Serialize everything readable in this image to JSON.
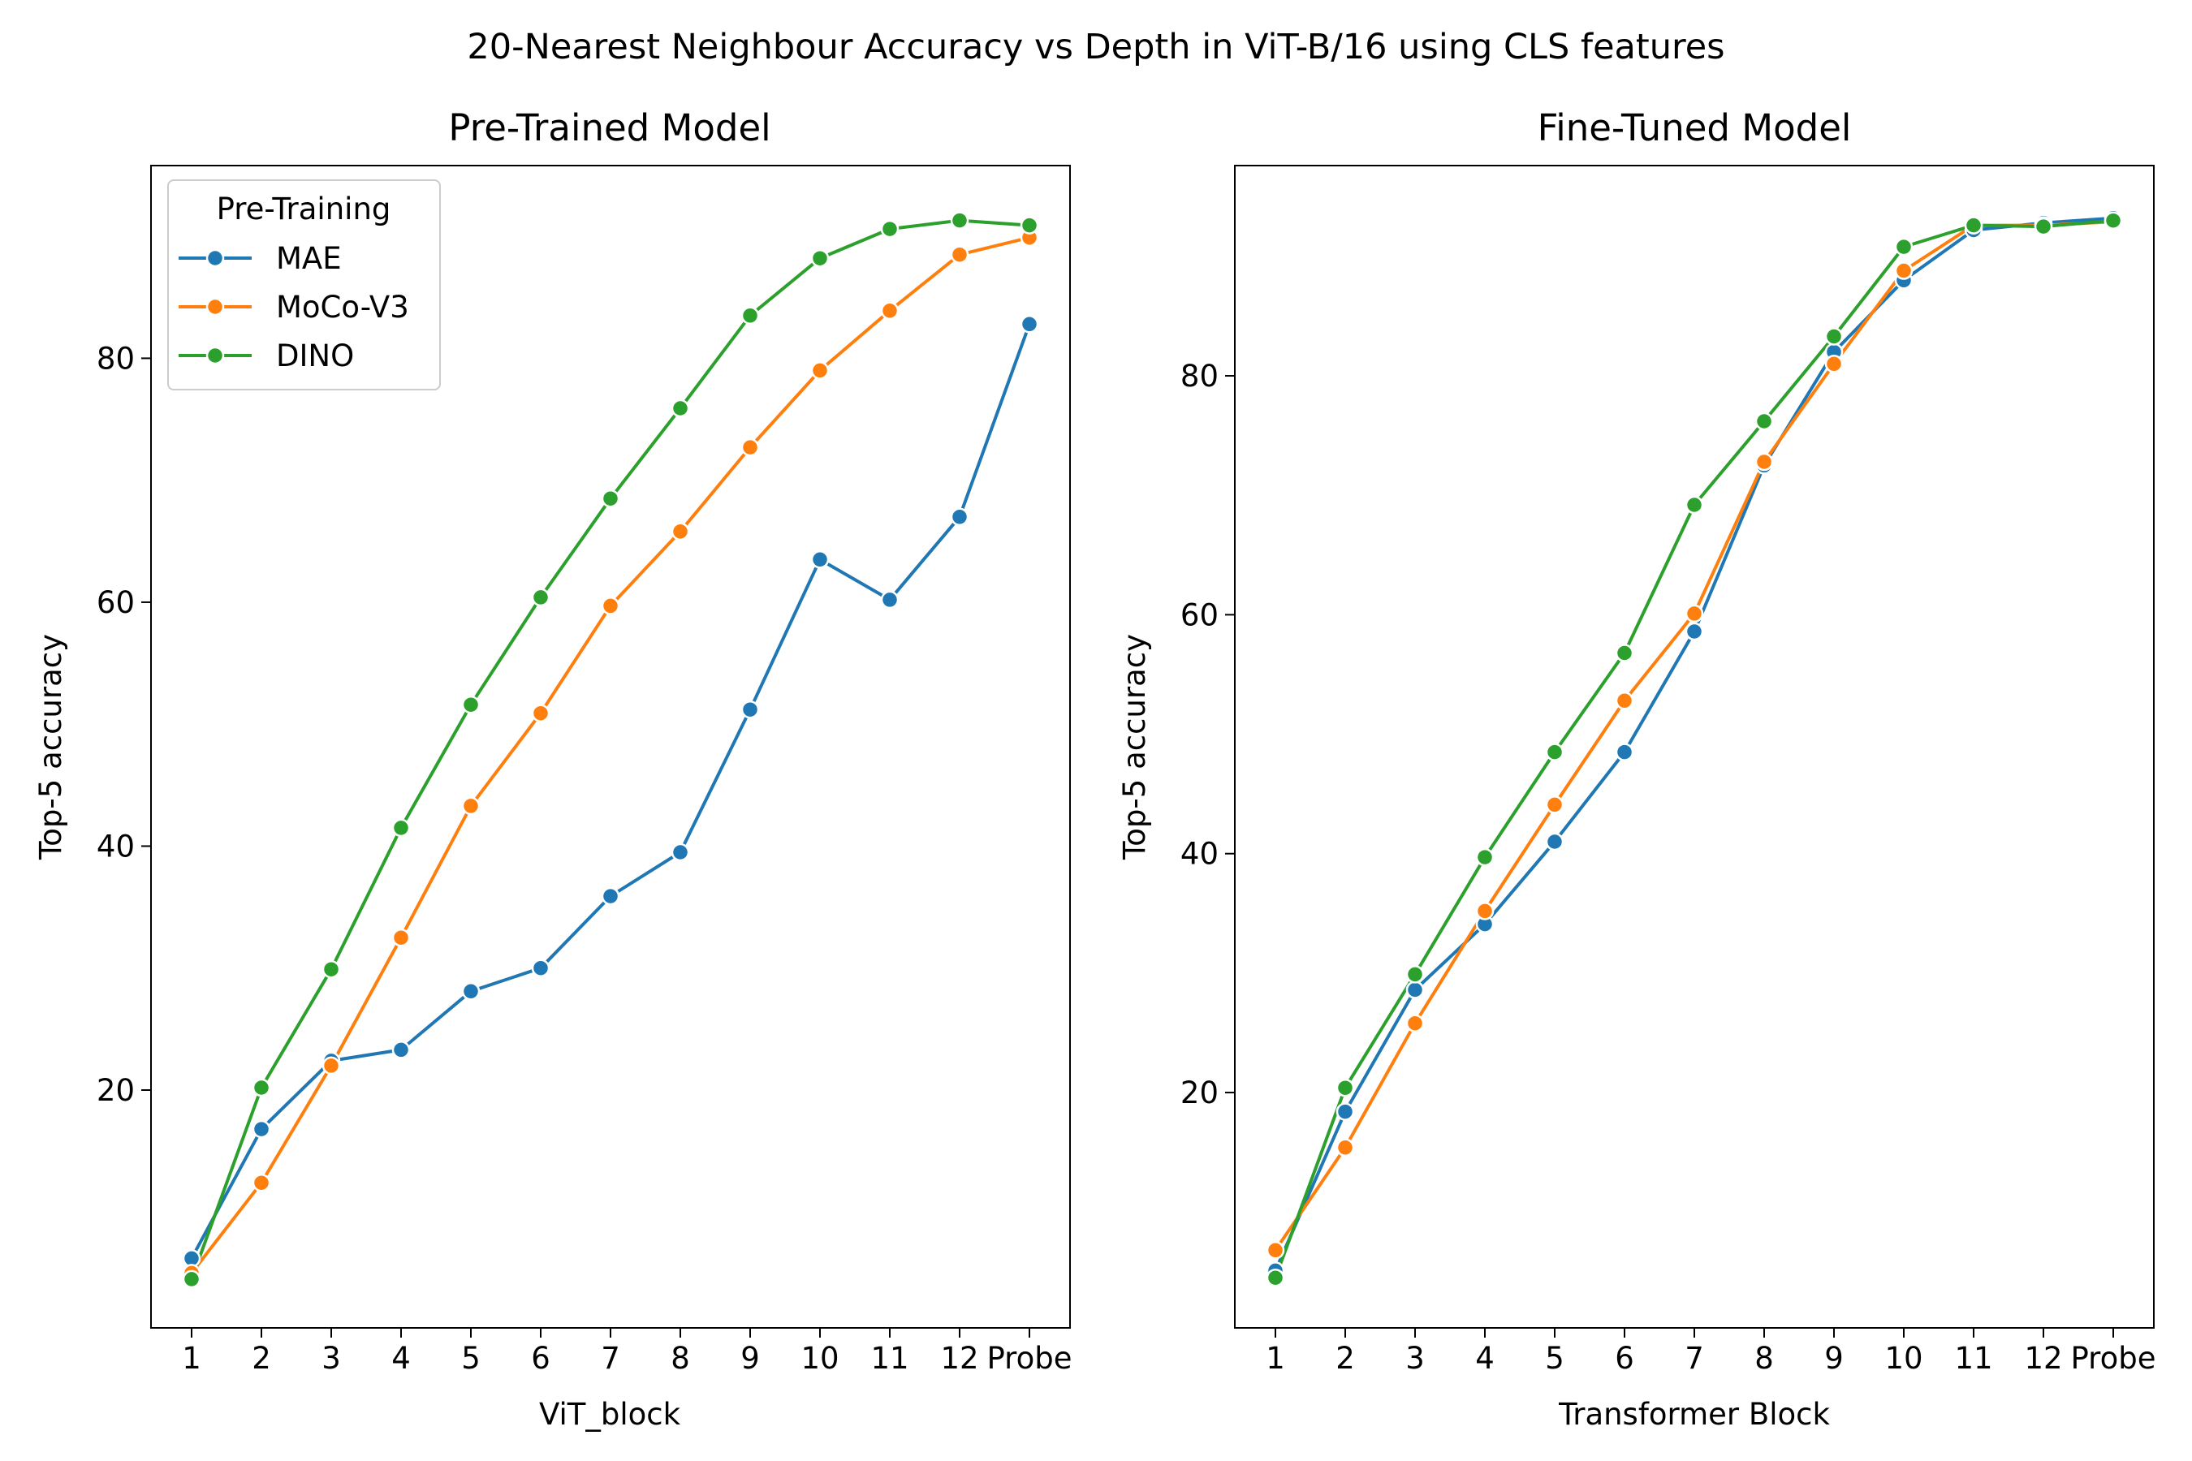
{
  "figure": {
    "title": "20-Nearest Neighbour Accuracy vs Depth in ViT-B/16 using CLS features"
  },
  "legend": {
    "title": "Pre-Training",
    "placement": "upper-left of left panel"
  },
  "colors": {
    "MAE": "#1f77b4",
    "MoCo-V3": "#ff7f0e",
    "DINO": "#2ca02c"
  },
  "chart_data": [
    {
      "type": "line",
      "title": "Pre-Trained Model",
      "xlabel": "ViT_block",
      "ylabel": "Top-5 accuracy",
      "categories": [
        "1",
        "2",
        "3",
        "4",
        "5",
        "6",
        "7",
        "8",
        "9",
        "10",
        "11",
        "12",
        "Probe"
      ],
      "ylim": [
        0.5,
        95.8
      ],
      "yticks": [
        20,
        40,
        60,
        80
      ],
      "grid": false,
      "legend": true,
      "series": [
        {
          "name": "MAE",
          "values": [
            6.2,
            16.8,
            22.4,
            23.3,
            28.1,
            30.0,
            35.9,
            39.5,
            51.2,
            63.5,
            60.2,
            67.0,
            82.8
          ]
        },
        {
          "name": "MoCo-V3",
          "values": [
            5.0,
            12.4,
            22.0,
            32.5,
            43.3,
            50.9,
            59.7,
            65.8,
            72.7,
            79.0,
            83.9,
            88.5,
            89.9
          ]
        },
        {
          "name": "DINO",
          "values": [
            4.5,
            20.2,
            29.9,
            41.5,
            51.6,
            60.4,
            68.5,
            75.9,
            83.5,
            88.2,
            90.6,
            91.3,
            90.9
          ]
        }
      ]
    },
    {
      "type": "line",
      "title": "Fine-Tuned Model",
      "xlabel": "Transformer Block",
      "ylabel": "Top-5 accuracy",
      "categories": [
        "1",
        "2",
        "3",
        "4",
        "5",
        "6",
        "7",
        "8",
        "9",
        "10",
        "11",
        "12",
        "Probe"
      ],
      "ylim": [
        0.3,
        97.6
      ],
      "yticks": [
        20,
        40,
        60,
        80
      ],
      "grid": false,
      "legend": false,
      "series": [
        {
          "name": "MAE",
          "values": [
            5.1,
            18.4,
            28.6,
            34.1,
            41.0,
            48.5,
            58.6,
            72.5,
            82.0,
            88.0,
            92.2,
            92.8,
            93.2
          ]
        },
        {
          "name": "MoCo-V3",
          "values": [
            6.8,
            15.4,
            25.8,
            35.2,
            44.1,
            52.8,
            60.1,
            72.8,
            81.0,
            88.8,
            92.6,
            92.6,
            92.9
          ]
        },
        {
          "name": "DINO",
          "values": [
            4.5,
            20.4,
            29.9,
            39.7,
            48.5,
            56.8,
            69.2,
            76.2,
            83.3,
            90.8,
            92.6,
            92.5,
            93.0
          ]
        }
      ]
    }
  ]
}
